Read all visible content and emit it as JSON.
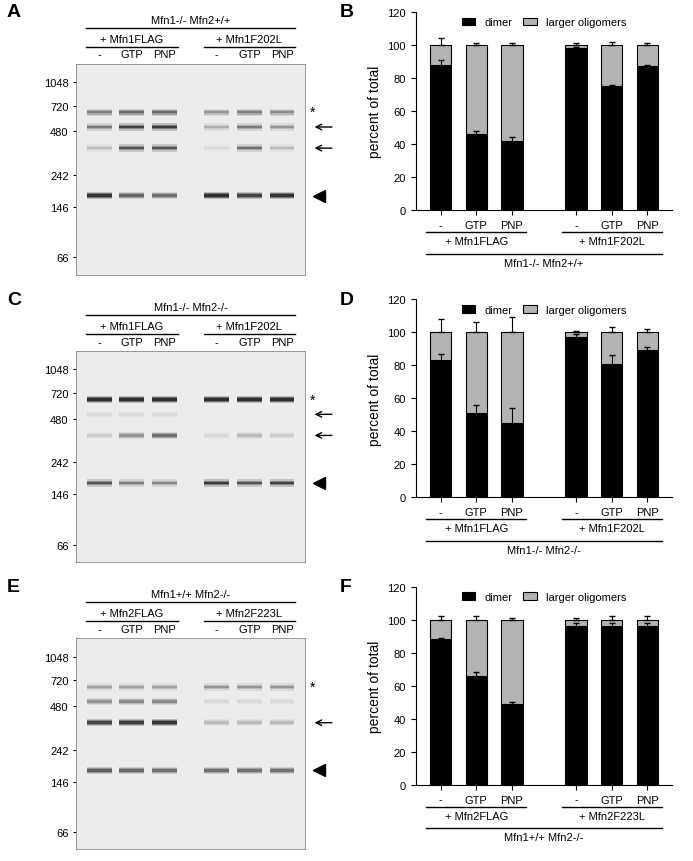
{
  "chart_data": [
    {
      "type": "gel",
      "panel_label": "A",
      "genotype": "Mfn1-/- Mfn2+/+",
      "groups": [
        "+ Mfn1FLAG",
        "+ Mfn1F202L"
      ],
      "lanes": [
        "-",
        "GTP",
        "PNP",
        "-",
        "GTP",
        "PNP"
      ],
      "log": "y",
      "ylim": [
        50,
        1400
      ],
      "yticks": [
        1048,
        720,
        480,
        242,
        146,
        66
      ],
      "tick_labels": "y",
      "annotations": [
        "*"
      ]
    },
    {
      "type": "bar",
      "panel_label": "B",
      "stacked": true,
      "grid": false,
      "legend": "upper center",
      "y_label": "percent of total",
      "group_label": "Mfn1-/- Mfn2+/+",
      "groups": [
        "+ Mfn1FLAG",
        "+ Mfn1F202L"
      ],
      "categories": [
        "-",
        "GTP",
        "PNP",
        "-",
        "GTP",
        "PNP"
      ],
      "ylim": [
        0,
        120
      ],
      "yticks": [
        0,
        20,
        40,
        60,
        80,
        100,
        120
      ],
      "series": [
        {
          "name": "dimer",
          "color": "#000000",
          "values": [
            88,
            46,
            42,
            98,
            75,
            87
          ],
          "errors": [
            3,
            2,
            2,
            1,
            1,
            1
          ]
        },
        {
          "name": "larger oligomers",
          "color": "#b3b3b3",
          "values": [
            12,
            54,
            58,
            2,
            25,
            13
          ],
          "errors": [
            4,
            1,
            1,
            1,
            2,
            1
          ]
        }
      ]
    },
    {
      "type": "gel",
      "panel_label": "C",
      "genotype": "Mfn1-/- Mfn2-/-",
      "groups": [
        "+ Mfn1FLAG",
        "+ Mfn1F202L"
      ],
      "lanes": [
        "-",
        "GTP",
        "PNP",
        "-",
        "GTP",
        "PNP"
      ],
      "log": "y",
      "ylim": [
        50,
        1400
      ],
      "yticks": [
        1048,
        720,
        480,
        242,
        146,
        66
      ],
      "tick_labels": "y",
      "annotations": [
        "*"
      ]
    },
    {
      "type": "bar",
      "panel_label": "D",
      "stacked": true,
      "grid": false,
      "legend": "upper center",
      "y_label": "percent of total",
      "group_label": "Mfn1-/- Mfn2-/-",
      "groups": [
        "+ Mfn1FLAG",
        "+ Mfn1F202L"
      ],
      "categories": [
        "-",
        "GTP",
        "PNP",
        "-",
        "GTP",
        "PNP"
      ],
      "ylim": [
        0,
        120
      ],
      "yticks": [
        0,
        20,
        40,
        60,
        80,
        100,
        120
      ],
      "series": [
        {
          "name": "dimer",
          "color": "#000000",
          "values": [
            83,
            51,
            45,
            97,
            81,
            89
          ],
          "errors": [
            4,
            5,
            9,
            2,
            5,
            2
          ]
        },
        {
          "name": "larger oligomers",
          "color": "#b3b3b3",
          "values": [
            17,
            49,
            55,
            3,
            19,
            11
          ],
          "errors": [
            8,
            6,
            9,
            1,
            3,
            2
          ]
        }
      ]
    },
    {
      "type": "gel",
      "panel_label": "E",
      "genotype": "Mfn1+/+ Mfn2-/-",
      "groups": [
        "+ Mfn2FLAG",
        "+ Mfn2F223L"
      ],
      "lanes": [
        "-",
        "GTP",
        "PNP",
        "-",
        "GTP",
        "PNP"
      ],
      "log": "y",
      "ylim": [
        50,
        1400
      ],
      "yticks": [
        1048,
        720,
        480,
        242,
        146,
        66
      ],
      "tick_labels": "y",
      "annotations": [
        "*"
      ]
    },
    {
      "type": "bar",
      "panel_label": "F",
      "stacked": true,
      "grid": false,
      "legend": "upper center",
      "y_label": "percent of total",
      "group_label": "Mfn1+/+ Mfn2-/-",
      "groups": [
        "+ Mfn2FLAG",
        "+ Mfn2F223L"
      ],
      "categories": [
        "-",
        "GTP",
        "PNP",
        "-",
        "GTP",
        "PNP"
      ],
      "ylim": [
        0,
        120
      ],
      "yticks": [
        0,
        20,
        40,
        60,
        80,
        100,
        120
      ],
      "series": [
        {
          "name": "dimer",
          "color": "#000000",
          "values": [
            88,
            66,
            49,
            96,
            96,
            96
          ],
          "errors": [
            1,
            2,
            1,
            2,
            2,
            2
          ]
        },
        {
          "name": "larger oligomers",
          "color": "#b3b3b3",
          "values": [
            12,
            34,
            51,
            4,
            4,
            4
          ],
          "errors": [
            2,
            2,
            1,
            1,
            2,
            2
          ]
        }
      ]
    }
  ]
}
